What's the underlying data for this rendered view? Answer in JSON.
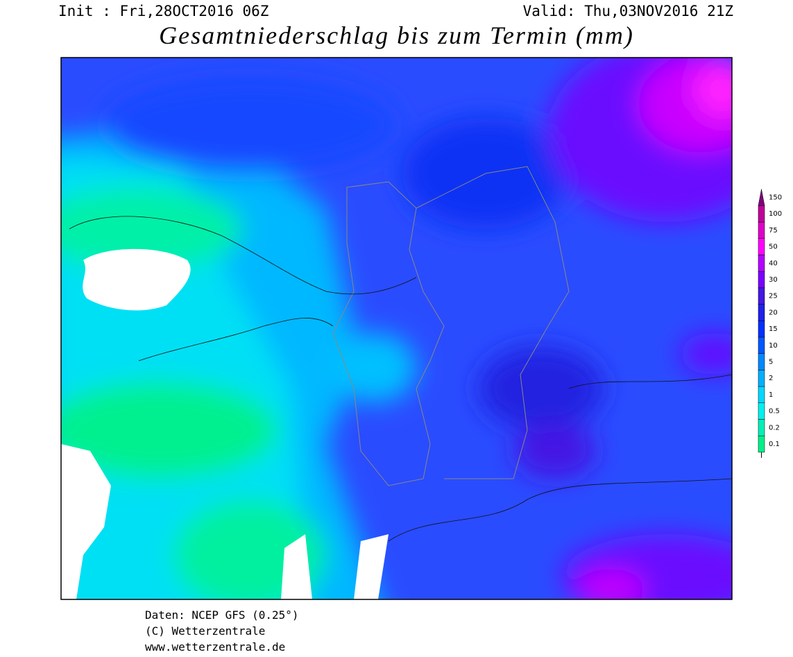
{
  "header": {
    "init": "Init : Fri,28OCT2016 06Z",
    "valid": "Valid: Thu,03NOV2016 21Z",
    "title": "Gesamtniederschlag bis zum Termin (mm)"
  },
  "legend": {
    "levels": [
      0.1,
      0.2,
      0.5,
      1,
      2,
      5,
      10,
      15,
      20,
      25,
      30,
      40,
      50,
      75,
      100,
      150
    ],
    "colors": [
      "#00f08c",
      "#00f0b8",
      "#00f0ee",
      "#00d8ff",
      "#00b0ff",
      "#0088ff",
      "#0058ff",
      "#0030ff",
      "#2020ea",
      "#4418e4",
      "#7a00ff",
      "#b400ff",
      "#ff00ff",
      "#e000c8",
      "#c0009a",
      "#80007e"
    ]
  },
  "footer": {
    "source": "Daten: NCEP GFS (0.25°)",
    "copyright": "(C) Wetterzentrale",
    "url": "www.wetterzentrale.de"
  }
}
